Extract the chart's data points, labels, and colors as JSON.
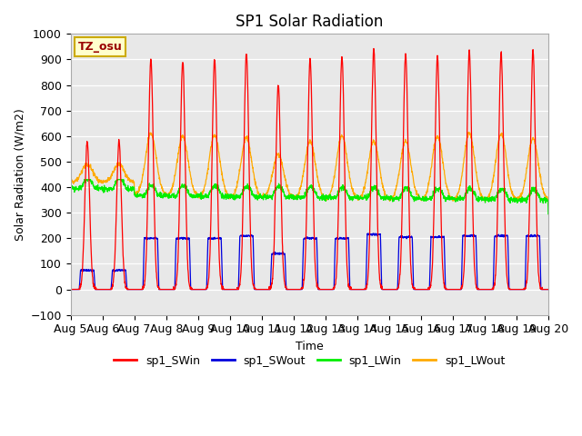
{
  "title": "SP1 Solar Radiation",
  "xlabel": "Time",
  "ylabel": "Solar Radiation (W/m2)",
  "ylim": [
    -100,
    1000
  ],
  "x_tick_labels": [
    "Aug 5",
    "Aug 6",
    "Aug 7",
    "Aug 8",
    "Aug 9",
    "Aug 10",
    "Aug 11",
    "Aug 12",
    "Aug 13",
    "Aug 14",
    "Aug 15",
    "Aug 16",
    "Aug 17",
    "Aug 18",
    "Aug 19",
    "Aug 20"
  ],
  "annotation_text": "TZ_osu",
  "annotation_color": "#990000",
  "annotation_bg": "#ffffcc",
  "annotation_border": "#ccaa00",
  "colors": {
    "sp1_SWin": "#ff0000",
    "sp1_SWout": "#0000dd",
    "sp1_LWin": "#00ee00",
    "sp1_LWout": "#ffaa00"
  },
  "bg_color": "#e8e8e8",
  "title_fontsize": 12,
  "label_fontsize": 9
}
